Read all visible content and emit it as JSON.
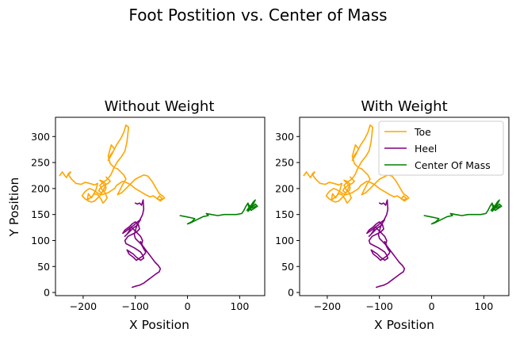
{
  "figure": {
    "suptitle": "Foot Postition vs. Center of Mass"
  },
  "colors": {
    "toe": "#ffa500",
    "heel": "#800080",
    "center_of_mass": "#008000"
  },
  "chart_data": [
    {
      "type": "line",
      "title": "Without Weight",
      "xlabel": "X Position",
      "ylabel": "Y Position",
      "xlim": [
        -253,
        148
      ],
      "ylim": [
        -6,
        337
      ],
      "xticks": [
        -200,
        -100,
        0,
        100
      ],
      "yticks": [
        0,
        50,
        100,
        150,
        200,
        250,
        300
      ],
      "grid": false,
      "legend": false,
      "series": [
        {
          "name": "Toe",
          "color": "#ffa500",
          "x": [
            -245,
            -240,
            -236,
            -232,
            -228,
            -224,
            -228,
            -222,
            -214,
            -204,
            -196,
            -188,
            -178,
            -172,
            -176,
            -184,
            -190,
            -192,
            -184,
            -178,
            -172,
            -166,
            -162,
            -158,
            -154,
            -158,
            -164,
            -168,
            -162,
            -156,
            -150,
            -146,
            -142,
            -134,
            -126,
            -120,
            -116,
            -113,
            -118,
            -122,
            -128,
            -136,
            -142,
            -148,
            -152,
            -146,
            -140,
            -146,
            -152,
            -148,
            -140,
            -134,
            -128,
            -122,
            -118,
            -124,
            -130,
            -134,
            -126,
            -118,
            -112,
            -106,
            -100,
            -92,
            -84,
            -76,
            -68,
            -60,
            -54,
            -48,
            -44,
            -52,
            -58,
            -54,
            -48,
            -54,
            -60,
            -66,
            -72,
            -80,
            -90,
            -100,
            -110,
            -118,
            -124,
            -130,
            -136,
            -140,
            -146,
            -152,
            -158,
            -164,
            -170,
            -176,
            -182,
            -188,
            -194,
            -198,
            -202,
            -196,
            -190,
            -184,
            -178,
            -174,
            -168,
            -164,
            -160,
            -156,
            -162,
            -168,
            -162,
            -156,
            -158,
            -166,
            -170,
            -168,
            -160,
            -152,
            -148,
            -152,
            -156
          ],
          "y": [
            225,
            232,
            226,
            221,
            229,
            232,
            226,
            218,
            210,
            208,
            212,
            210,
            207,
            210,
            196,
            182,
            190,
            178,
            184,
            190,
            188,
            180,
            172,
            176,
            182,
            192,
            198,
            206,
            212,
            216,
            222,
            228,
            238,
            252,
            262,
            272,
            290,
            318,
            322,
            308,
            296,
            284,
            272,
            264,
            254,
            264,
            276,
            284,
            262,
            248,
            240,
            238,
            232,
            226,
            218,
            208,
            196,
            188,
            192,
            200,
            206,
            212,
            218,
            222,
            226,
            224,
            214,
            200,
            190,
            186,
            182,
            176,
            180,
            186,
            180,
            178,
            182,
            186,
            184,
            188,
            194,
            200,
            208,
            212,
            214,
            210,
            206,
            200,
            196,
            192,
            190,
            188,
            190,
            194,
            198,
            200,
            196,
            192,
            186,
            180,
            176,
            174,
            176,
            180,
            186,
            192,
            200,
            208,
            214,
            216,
            210,
            202,
            196,
            192,
            196,
            200,
            206,
            210,
            214,
            218,
            222
          ]
        },
        {
          "name": "Heel",
          "color": "#800080",
          "x": [
            -100,
            -96,
            -92,
            -88,
            -85,
            -84,
            -86,
            -90,
            -94,
            -98,
            -100,
            -102,
            -100,
            -94,
            -88,
            -86,
            -90,
            -96,
            -102,
            -108,
            -112,
            -116,
            -120,
            -116,
            -110,
            -104,
            -98,
            -94,
            -90,
            -96,
            -102,
            -110,
            -118,
            -124,
            -120,
            -112,
            -106,
            -100,
            -94,
            -92,
            -98,
            -106,
            -114,
            -120,
            -118,
            -110,
            -102,
            -96,
            -90,
            -86,
            -84,
            -90,
            -98,
            -104,
            -110,
            -116,
            -112,
            -104,
            -98,
            -92,
            -86,
            -82,
            -80,
            -84,
            -88,
            -90,
            -86,
            -80,
            -74,
            -68,
            -62,
            -56,
            -52,
            -54,
            -60,
            -68,
            -76,
            -84,
            -92,
            -100,
            -106
          ],
          "y": [
            172,
            170,
            172,
            168,
            178,
            160,
            150,
            142,
            134,
            126,
            118,
            112,
            104,
            98,
            92,
            100,
            108,
            114,
            120,
            126,
            118,
            112,
            108,
            112,
            118,
            124,
            128,
            134,
            140,
            136,
            130,
            124,
            118,
            114,
            120,
            126,
            132,
            136,
            130,
            122,
            116,
            112,
            108,
            100,
            94,
            90,
            86,
            82,
            78,
            72,
            66,
            62,
            68,
            74,
            78,
            82,
            74,
            68,
            62,
            66,
            70,
            74,
            78,
            84,
            92,
            98,
            90,
            82,
            74,
            66,
            58,
            52,
            46,
            40,
            36,
            30,
            24,
            18,
            14,
            12,
            10
          ]
        },
        {
          "name": "Center Of Mass",
          "color": "#008000",
          "x": [
            -14,
            -4,
            6,
            14,
            8,
            0,
            6,
            18,
            30,
            40,
            36,
            46,
            58,
            70,
            82,
            94,
            104,
            108,
            112,
            116,
            118,
            114,
            118,
            122,
            126,
            130,
            126,
            122,
            118,
            116,
            120,
            126,
            130,
            134,
            128,
            122,
            118,
            116,
            120,
            126,
            130
          ],
          "y": [
            148,
            146,
            144,
            142,
            136,
            132,
            134,
            140,
            146,
            148,
            152,
            150,
            148,
            150,
            150,
            150,
            152,
            158,
            166,
            172,
            164,
            158,
            162,
            168,
            174,
            178,
            170,
            164,
            160,
            156,
            160,
            166,
            170,
            166,
            162,
            158,
            164,
            170,
            166,
            162,
            166
          ]
        }
      ]
    },
    {
      "type": "line",
      "title": "With Weight",
      "xlabel": "X Position",
      "ylabel": "",
      "xlim": [
        -253,
        148
      ],
      "ylim": [
        -6,
        337
      ],
      "xticks": [
        -200,
        -100,
        0,
        100
      ],
      "yticks": [
        0,
        50,
        100,
        150,
        200,
        250,
        300
      ],
      "grid": false,
      "legend": true,
      "legend_position": "top-right",
      "same_data_as_first_panel": true
    }
  ]
}
